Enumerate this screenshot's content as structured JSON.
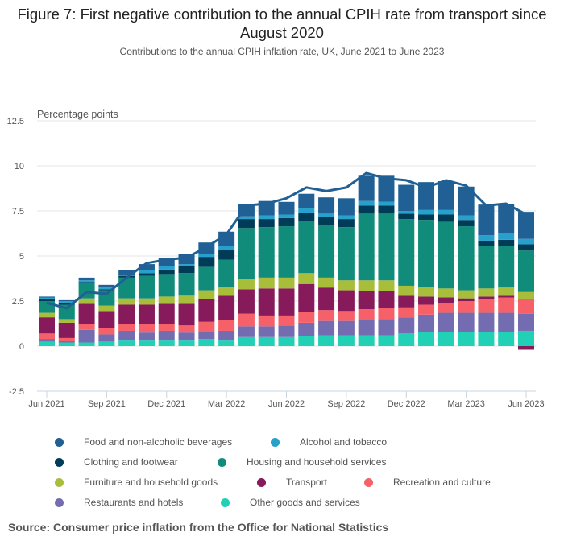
{
  "chart_data": {
    "type": "bar",
    "stacked": true,
    "title": "Figure 7: First negative contribution to the annual CPIH rate from transport since August 2020",
    "subtitle": "Contributions to the annual CPIH inflation rate, UK, June 2021 to June 2023",
    "ylabel": "Percentage points",
    "xlabel": "",
    "ylim": [
      -2.5,
      12.5
    ],
    "yticks": [
      -2.5,
      0,
      2.5,
      5,
      7.5,
      10,
      12.5
    ],
    "ytick_labels": [
      "-2.5",
      "0",
      "2.5",
      "5",
      "7.5",
      "10",
      "12.5"
    ],
    "grid": true,
    "legend_position": "bottom",
    "categories": [
      "Jun 2021",
      "Jul 2021",
      "Aug 2021",
      "Sep 2021",
      "Oct 2021",
      "Nov 2021",
      "Dec 2021",
      "Jan 2022",
      "Feb 2022",
      "Mar 2022",
      "Apr 2022",
      "May 2022",
      "Jun 2022",
      "Jul 2022",
      "Aug 2022",
      "Sep 2022",
      "Oct 2022",
      "Nov 2022",
      "Dec 2022",
      "Jan 2023",
      "Feb 2023",
      "Mar 2023",
      "Apr 2023",
      "May 2023",
      "Jun 2023"
    ],
    "xtick_labels": [
      "Jun 2021",
      "Sep 2021",
      "Dec 2021",
      "Mar 2022",
      "Jun 2022",
      "Sep 2022",
      "Dec 2022",
      "Mar 2023",
      "Jun 2023"
    ],
    "xtick_indices": [
      0,
      3,
      6,
      9,
      12,
      15,
      18,
      21,
      24
    ],
    "series": [
      {
        "name": "Other goods and services",
        "color": "#22d0b6",
        "values": [
          0.25,
          0.2,
          0.2,
          0.25,
          0.35,
          0.35,
          0.35,
          0.35,
          0.4,
          0.35,
          0.5,
          0.5,
          0.5,
          0.55,
          0.6,
          0.6,
          0.6,
          0.6,
          0.7,
          0.8,
          0.8,
          0.8,
          0.8,
          0.8,
          0.85
        ]
      },
      {
        "name": "Restaurants and hotels",
        "color": "#746cb1",
        "values": [
          0.15,
          0.1,
          0.7,
          0.4,
          0.5,
          0.4,
          0.5,
          0.4,
          0.4,
          0.5,
          0.6,
          0.6,
          0.65,
          0.75,
          0.8,
          0.8,
          0.85,
          0.9,
          0.9,
          0.95,
          1.05,
          1.05,
          1.05,
          1.05,
          0.95
        ]
      },
      {
        "name": "Recreation and culture",
        "color": "#f66068",
        "values": [
          0.3,
          0.15,
          0.35,
          0.35,
          0.4,
          0.5,
          0.4,
          0.4,
          0.55,
          0.6,
          0.7,
          0.6,
          0.55,
          0.6,
          0.6,
          0.55,
          0.6,
          0.6,
          0.55,
          0.55,
          0.55,
          0.65,
          0.75,
          0.85,
          0.8
        ]
      },
      {
        "name": "Transport",
        "color": "#871a5b",
        "values": [
          0.9,
          0.85,
          1.1,
          0.95,
          1.05,
          1.05,
          1.1,
          1.2,
          1.25,
          1.35,
          1.35,
          1.5,
          1.5,
          1.55,
          1.25,
          1.15,
          1.0,
          0.95,
          0.65,
          0.45,
          0.3,
          0.15,
          0.15,
          0.1,
          -0.2
        ]
      },
      {
        "name": "Furniture and household goods",
        "color": "#a8bd3a",
        "values": [
          0.25,
          0.2,
          0.3,
          0.3,
          0.35,
          0.35,
          0.4,
          0.45,
          0.5,
          0.5,
          0.6,
          0.6,
          0.6,
          0.6,
          0.55,
          0.55,
          0.6,
          0.6,
          0.55,
          0.55,
          0.5,
          0.45,
          0.45,
          0.45,
          0.4
        ]
      },
      {
        "name": "Housing and household services",
        "color": "#118c7b",
        "values": [
          0.65,
          0.8,
          0.85,
          0.85,
          1.15,
          1.25,
          1.25,
          1.25,
          1.3,
          1.5,
          2.8,
          2.8,
          2.85,
          2.9,
          2.9,
          2.95,
          3.7,
          3.7,
          3.7,
          3.7,
          3.7,
          3.55,
          2.35,
          2.3,
          2.3
        ]
      },
      {
        "name": "Clothing and footwear",
        "color": "#003c57",
        "values": [
          0.1,
          0.1,
          0.05,
          0.05,
          0.1,
          0.15,
          0.25,
          0.4,
          0.55,
          0.55,
          0.5,
          0.45,
          0.45,
          0.45,
          0.45,
          0.45,
          0.45,
          0.45,
          0.3,
          0.3,
          0.4,
          0.35,
          0.3,
          0.35,
          0.35
        ]
      },
      {
        "name": "Alcohol and tobacco",
        "color": "#27a0cc",
        "values": [
          0.1,
          0.1,
          0.1,
          0.1,
          0.05,
          0.15,
          0.2,
          0.1,
          0.15,
          0.2,
          0.15,
          0.2,
          0.2,
          0.25,
          0.2,
          0.2,
          0.25,
          0.2,
          0.15,
          0.25,
          0.25,
          0.25,
          0.3,
          0.35,
          0.3
        ]
      },
      {
        "name": "Food and non-alcoholic beverages",
        "color": "#206095",
        "values": [
          0.05,
          0.05,
          0.15,
          0.15,
          0.25,
          0.35,
          0.45,
          0.55,
          0.65,
          0.8,
          0.7,
          0.8,
          0.7,
          0.8,
          0.9,
          0.95,
          1.4,
          1.45,
          1.45,
          1.55,
          1.6,
          1.6,
          1.7,
          1.65,
          1.5
        ]
      }
    ],
    "line": {
      "name": "CPIH annual rate",
      "color": "#206095",
      "values": [
        2.4,
        2.1,
        3.0,
        2.9,
        3.8,
        4.6,
        4.8,
        4.9,
        5.5,
        6.2,
        7.8,
        7.9,
        8.2,
        8.8,
        8.6,
        8.8,
        9.6,
        9.3,
        9.2,
        8.8,
        9.2,
        8.9,
        7.8,
        7.9,
        7.3
      ]
    }
  },
  "legend": {
    "items": [
      {
        "label": "Food and non-alcoholic beverages",
        "color": "#206095"
      },
      {
        "label": "Alcohol and tobacco",
        "color": "#27a0cc"
      },
      {
        "label": "Clothing and footwear",
        "color": "#003c57"
      },
      {
        "label": "Housing and household services",
        "color": "#118c7b"
      },
      {
        "label": "Furniture and household goods",
        "color": "#a8bd3a"
      },
      {
        "label": "Transport",
        "color": "#871a5b"
      },
      {
        "label": "Recreation and culture",
        "color": "#f66068"
      },
      {
        "label": "Restaurants and hotels",
        "color": "#746cb1"
      },
      {
        "label": "Other goods and services",
        "color": "#22d0b6"
      }
    ]
  },
  "source": "Source: Consumer price inflation from the Office for National Statistics"
}
